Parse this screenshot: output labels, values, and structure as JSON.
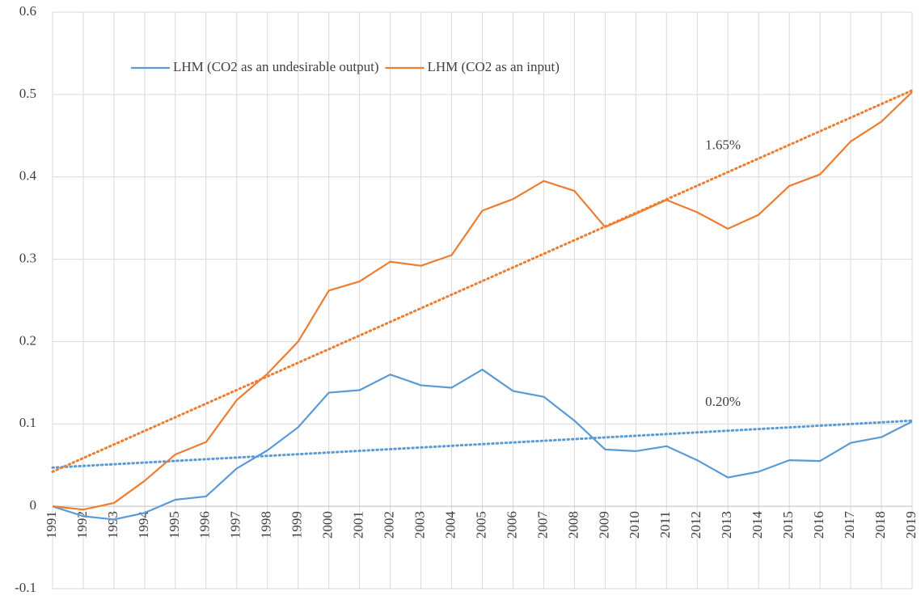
{
  "chart_data": {
    "type": "line",
    "categories": [
      "1991",
      "1992",
      "1993",
      "1994",
      "1995",
      "1996",
      "1997",
      "1998",
      "1999",
      "2000",
      "2001",
      "2002",
      "2003",
      "2004",
      "2005",
      "2006",
      "2007",
      "2008",
      "2009",
      "2010",
      "2011",
      "2012",
      "2013",
      "2014",
      "2015",
      "2016",
      "2017",
      "2018",
      "2019"
    ],
    "series": [
      {
        "name": "LHM (CO2 as an undesirable output)",
        "color": "#5b9bd5",
        "values": [
          0,
          -0.012,
          -0.016,
          -0.008,
          0.008,
          0.012,
          0.046,
          0.068,
          0.096,
          0.138,
          0.141,
          0.16,
          0.147,
          0.144,
          0.166,
          0.14,
          0.133,
          0.104,
          0.069,
          0.067,
          0.073,
          0.056,
          0.035,
          0.042,
          0.056,
          0.055,
          0.077,
          0.084,
          0.103
        ],
        "trend": [
          0.047,
          0.104
        ],
        "trend_label": "0.20%"
      },
      {
        "name": "LHM (CO2 as an input)",
        "color": "#ed7d31",
        "values": [
          0,
          -0.004,
          0.004,
          0.031,
          0.063,
          0.078,
          0.129,
          0.161,
          0.2,
          0.262,
          0.273,
          0.297,
          0.292,
          0.305,
          0.359,
          0.373,
          0.395,
          0.383,
          0.339,
          0.355,
          0.372,
          0.357,
          0.337,
          0.354,
          0.389,
          0.403,
          0.443,
          0.467,
          0.503
        ],
        "trend": [
          0.042,
          0.505
        ],
        "trend_label": "1.65%"
      }
    ],
    "ylim": [
      -0.1,
      0.6
    ],
    "yticks": [
      -0.1,
      0,
      0.1,
      0.2,
      0.3,
      0.4,
      0.5,
      0.6
    ],
    "grid": true,
    "legend": "top-left"
  }
}
